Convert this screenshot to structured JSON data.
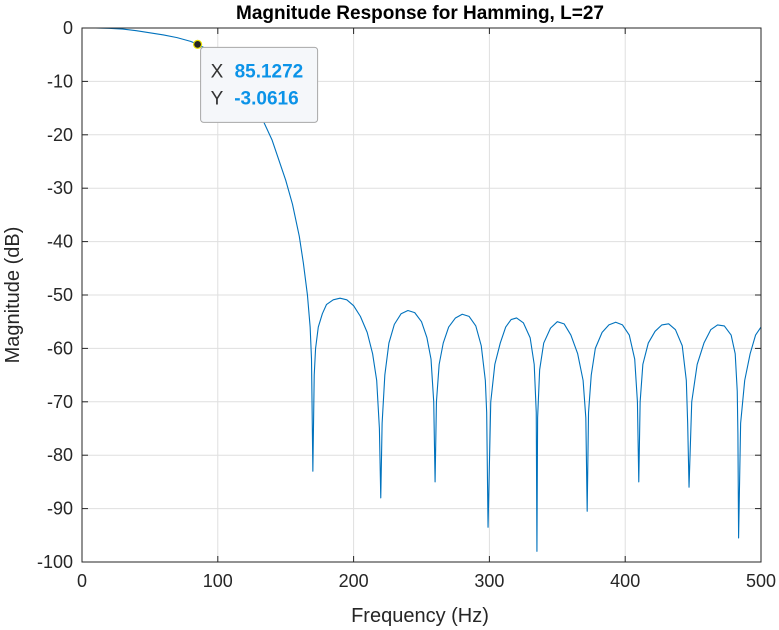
{
  "chart_data": {
    "type": "line",
    "title": "Magnitude Response for Hamming, L=27",
    "xlabel": "Frequency (Hz)",
    "ylabel": "Magnitude (dB)",
    "xlim": [
      0,
      500
    ],
    "ylim": [
      -100,
      0
    ],
    "xticks": [
      0,
      100,
      200,
      300,
      400,
      500
    ],
    "yticks": [
      0,
      -10,
      -20,
      -30,
      -40,
      -50,
      -60,
      -70,
      -80,
      -90,
      -100
    ],
    "grid": true,
    "colors": {
      "line": "#0072bd",
      "datatip_value": "#0b93e8"
    },
    "series": [
      {
        "name": "",
        "x": [
          0,
          10,
          20,
          30,
          40,
          50,
          60,
          70,
          80,
          85.13,
          90,
          100,
          110,
          120,
          130,
          140,
          150,
          155,
          160,
          163,
          166,
          168,
          169,
          170,
          171,
          172,
          174,
          177,
          180,
          185,
          190,
          195,
          200,
          205,
          210,
          214,
          217,
          219,
          220,
          221,
          223,
          226,
          230,
          235,
          240,
          245,
          250,
          254,
          257,
          259,
          260,
          261,
          263,
          266,
          270,
          275,
          280,
          285,
          290,
          294,
          297,
          298,
          299,
          301,
          304,
          308,
          312,
          316,
          320,
          325,
          330,
          333,
          334.5,
          335,
          335.5,
          337,
          340,
          345,
          350,
          355,
          360,
          365,
          369,
          371,
          372,
          373,
          375,
          378,
          383,
          388,
          393,
          398,
          403,
          407,
          409,
          410,
          411,
          413,
          417,
          422,
          427,
          432,
          437,
          442,
          445,
          446,
          447,
          449,
          453,
          458,
          463,
          468,
          473,
          478,
          481,
          482.5,
          483,
          483.5,
          485,
          488,
          492,
          496,
          500
        ],
        "y": [
          0,
          0,
          -0.05,
          -0.2,
          -0.5,
          -0.9,
          -1.3,
          -1.8,
          -2.5,
          -3.0616,
          -3.7,
          -5.2,
          -7.5,
          -11,
          -15.5,
          -21,
          -28.5,
          -33,
          -39,
          -44,
          -50,
          -56,
          -62,
          -83,
          -65,
          -60,
          -56,
          -53.5,
          -51.8,
          -50.9,
          -50.6,
          -50.9,
          -52,
          -54,
          -57,
          -61,
          -66,
          -75,
          -88,
          -74,
          -65,
          -59,
          -55.5,
          -53.5,
          -52.9,
          -53.3,
          -55,
          -58,
          -62,
          -70,
          -85,
          -70,
          -63,
          -59,
          -56,
          -54.3,
          -53.6,
          -54,
          -55.8,
          -59.5,
          -66,
          -72,
          -93.5,
          -70,
          -63,
          -59,
          -56,
          -54.6,
          -54.3,
          -55.2,
          -58,
          -63,
          -72,
          -98,
          -73,
          -64,
          -59,
          -56.2,
          -55,
          -55.4,
          -57.5,
          -61,
          -66,
          -73,
          -90.5,
          -72,
          -65,
          -60,
          -57,
          -55.6,
          -55.1,
          -55.6,
          -57.5,
          -62,
          -70,
          -85,
          -70,
          -63,
          -59,
          -56.8,
          -55.6,
          -55.4,
          -56.5,
          -59.5,
          -66,
          -74,
          -86,
          -70,
          -63,
          -59,
          -56.5,
          -55.6,
          -55.8,
          -57.5,
          -61,
          -68,
          -76,
          -95.5,
          -74,
          -66,
          -61,
          -57.5,
          -56
        ]
      }
    ],
    "datatip": {
      "x": 85.1272,
      "y": -3.0616,
      "x_label": "X",
      "y_label": "Y",
      "x_text": "85.1272",
      "y_text": "-3.0616"
    }
  }
}
